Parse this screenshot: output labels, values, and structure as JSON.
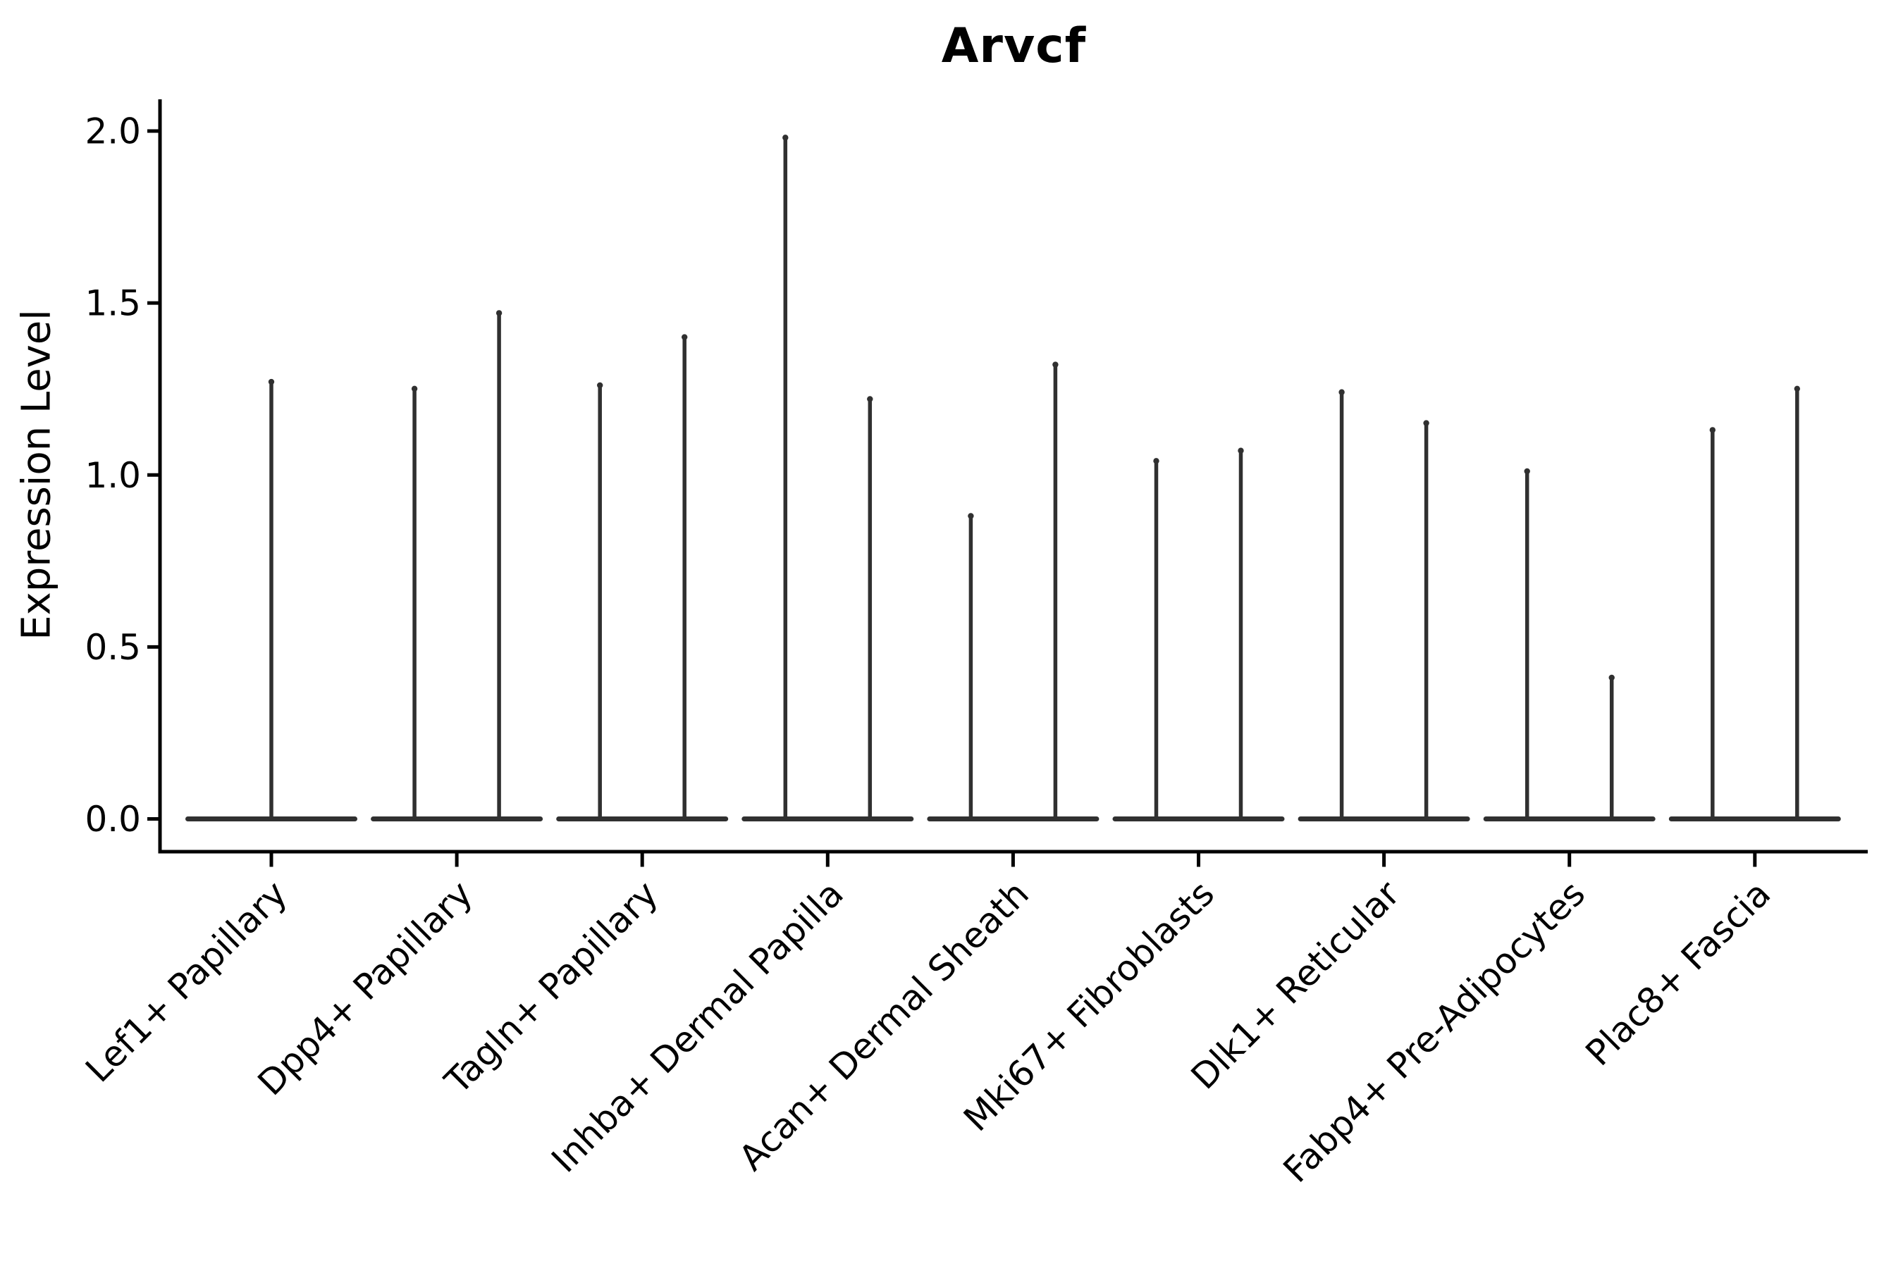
{
  "figure": {
    "title": "Arvcf",
    "ylabel": "Expression Level"
  },
  "chart_data": {
    "type": "violin",
    "title": "Arvcf",
    "xlabel": "",
    "ylabel": "Expression Level",
    "ylim": [
      0,
      2.05
    ],
    "yticks": [
      2.0,
      1.5,
      1.0,
      0.5,
      0.0
    ],
    "ytick_labels": [
      "2.0",
      "1.5",
      "1.0",
      "0.5",
      "0.0"
    ],
    "grid": false,
    "legend": null,
    "categories": [
      "Lef1+ Papillary",
      "Dpp4+ Papillary",
      "Tagln+ Papillary",
      "Inhba+ Dermal Papilla",
      "Acan+ Dermal Sheath",
      "Mki67+ Fibroblasts",
      "Dlk1+ Reticular",
      "Fabp4+ Pre-Adipocytes",
      "Plac8+ Fascia"
    ],
    "violins": [
      {
        "category": "Lef1+ Papillary",
        "spikes": [
          {
            "pos": "center",
            "max": 1.28
          }
        ]
      },
      {
        "category": "Dpp4+ Papillary",
        "spikes": [
          {
            "pos": "left",
            "max": 1.26
          },
          {
            "pos": "right",
            "max": 1.48
          }
        ]
      },
      {
        "category": "Tagln+ Papillary",
        "spikes": [
          {
            "pos": "left",
            "max": 1.27
          },
          {
            "pos": "right",
            "max": 1.41
          }
        ]
      },
      {
        "category": "Inhba+ Dermal Papilla",
        "spikes": [
          {
            "pos": "left",
            "max": 1.99
          },
          {
            "pos": "right",
            "max": 1.23
          }
        ]
      },
      {
        "category": "Acan+ Dermal Sheath",
        "spikes": [
          {
            "pos": "left",
            "max": 0.89
          },
          {
            "pos": "right",
            "max": 1.33
          }
        ]
      },
      {
        "category": "Mki67+ Fibroblasts",
        "spikes": [
          {
            "pos": "left",
            "max": 1.05
          },
          {
            "pos": "right",
            "max": 1.08
          }
        ]
      },
      {
        "category": "Dlk1+ Reticular",
        "spikes": [
          {
            "pos": "left",
            "max": 1.25
          },
          {
            "pos": "right",
            "max": 1.16
          }
        ]
      },
      {
        "category": "Fabp4+ Pre-Adipocytes",
        "spikes": [
          {
            "pos": "left",
            "max": 1.02
          },
          {
            "pos": "right",
            "max": 0.42
          }
        ]
      },
      {
        "category": "Plac8+ Fascia",
        "spikes": [
          {
            "pos": "left",
            "max": 1.14
          },
          {
            "pos": "right",
            "max": 1.26
          }
        ]
      }
    ],
    "baseline_value": 0.0,
    "colors": {
      "violin_outline": "#303030",
      "axis": "#000000",
      "text": "#000000",
      "background": "#ffffff"
    }
  }
}
